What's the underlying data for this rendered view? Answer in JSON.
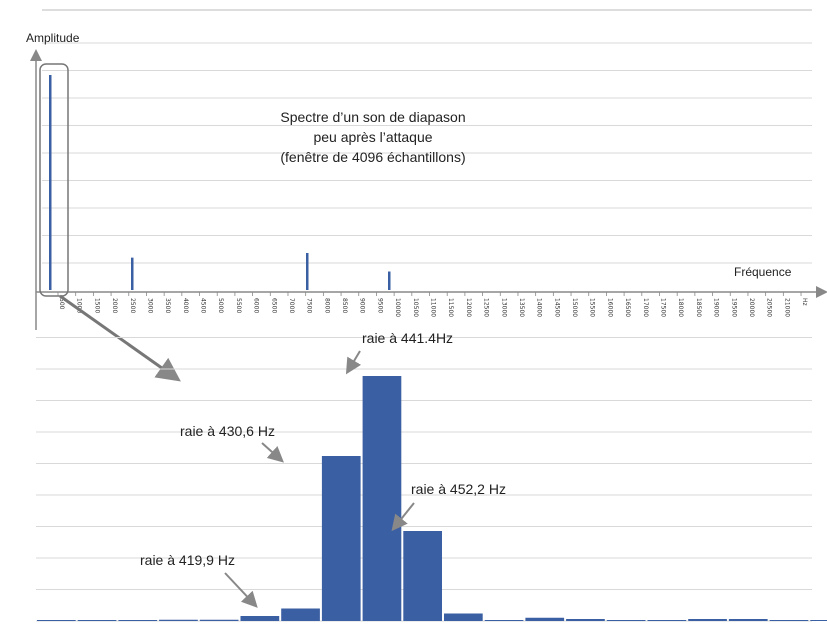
{
  "chart_data": [
    {
      "type": "bar",
      "title": "Spectre d’un son de diapason|peu après l’attaque|(fenêtre de 4096 échantillons)",
      "ylabel": "Amplitude",
      "xlabel": "Fréquence",
      "x_unit": "Hz",
      "xlim": [
        0,
        21500
      ],
      "ylim": [
        0,
        1.0
      ],
      "grid": true,
      "colors": {
        "bars": "#3b5fa3",
        "grid": "#d9d9d9",
        "axis": "#888888",
        "zoom_box": "#777777"
      },
      "tick_labels": [
        "500",
        "1000",
        "1500",
        "2000",
        "2500",
        "3000",
        "3500",
        "4000",
        "4500",
        "5000",
        "5500",
        "6000",
        "6500",
        "7000",
        "7500",
        "8000",
        "8500",
        "9000",
        "9500",
        "10000",
        "10500",
        "11000",
        "11500",
        "12000",
        "12500",
        "13000",
        "13500",
        "14000",
        "14500",
        "15000",
        "15500",
        "16000",
        "16500",
        "17000",
        "17500",
        "18000",
        "18500",
        "19000",
        "19500",
        "20000",
        "20500",
        "21000",
        "Hz"
      ],
      "x": [
        441.4,
        2500,
        7000,
        9200
      ],
      "values": [
        0.93,
        0.14,
        0.16,
        0.08
      ]
    },
    {
      "type": "bar",
      "x_unit": "Hz",
      "ylim": [
        0,
        1.0
      ],
      "grid": true,
      "bin_width": 10.77,
      "x": [
        333.0,
        343.8,
        354.5,
        365.3,
        376.1,
        386.9,
        397.6,
        408.4,
        419.2,
        430.0,
        440.7,
        451.5,
        462.3,
        473.0,
        483.8,
        494.6,
        505.4,
        516.1,
        526.9,
        537.7
      ],
      "values": [
        0.004,
        0.004,
        0.004,
        0.005,
        0.005,
        0.02,
        0.05,
        0.66,
        0.98,
        0.36,
        0.03,
        0.004,
        0.013,
        0.008,
        0.004,
        0.004,
        0.008,
        0.008,
        0.004,
        0.004
      ],
      "annotations": [
        {
          "text": "raie à 419,9 Hz",
          "bar": 6
        },
        {
          "text": "raie à 430,6 Hz",
          "bar": 7
        },
        {
          "text": "raie à 441.4Hz",
          "bar": 8
        },
        {
          "text": "raie à 452,2 Hz",
          "bar": 9
        }
      ]
    }
  ]
}
